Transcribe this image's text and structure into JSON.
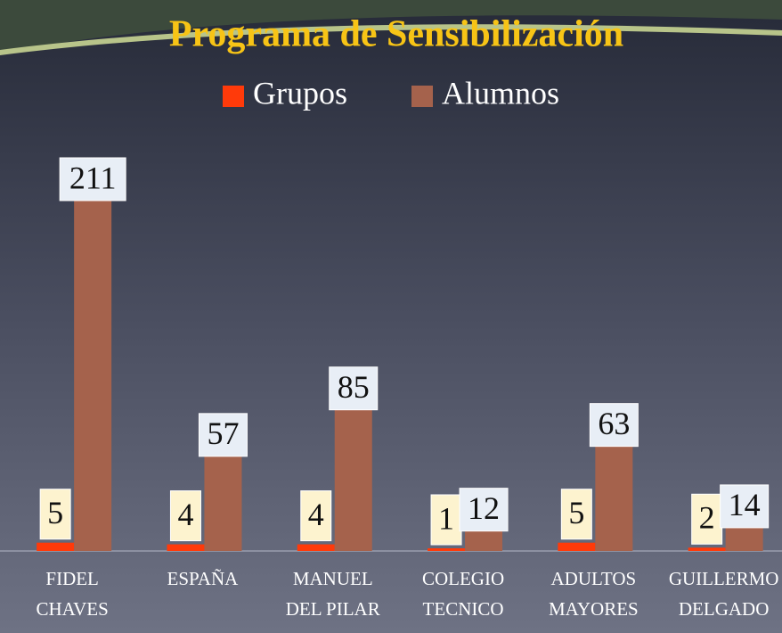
{
  "chart_data": {
    "type": "bar",
    "title": "Programa de Sensibilización",
    "categories": [
      "FIDEL\nCHAVES",
      "ESPAÑA",
      "MANUEL\nDEL PILAR",
      "COLEGIO\nTECNICO",
      "ADULTOS\nMAYORES",
      "GUILLERMO\nDELGADO"
    ],
    "series": [
      {
        "name": "Grupos",
        "color": "#ff3a0a",
        "values": [
          5,
          4,
          4,
          1,
          5,
          2
        ]
      },
      {
        "name": "Alumnos",
        "color": "#a5624c",
        "values": [
          211,
          57,
          85,
          12,
          63,
          14
        ]
      }
    ]
  }
}
